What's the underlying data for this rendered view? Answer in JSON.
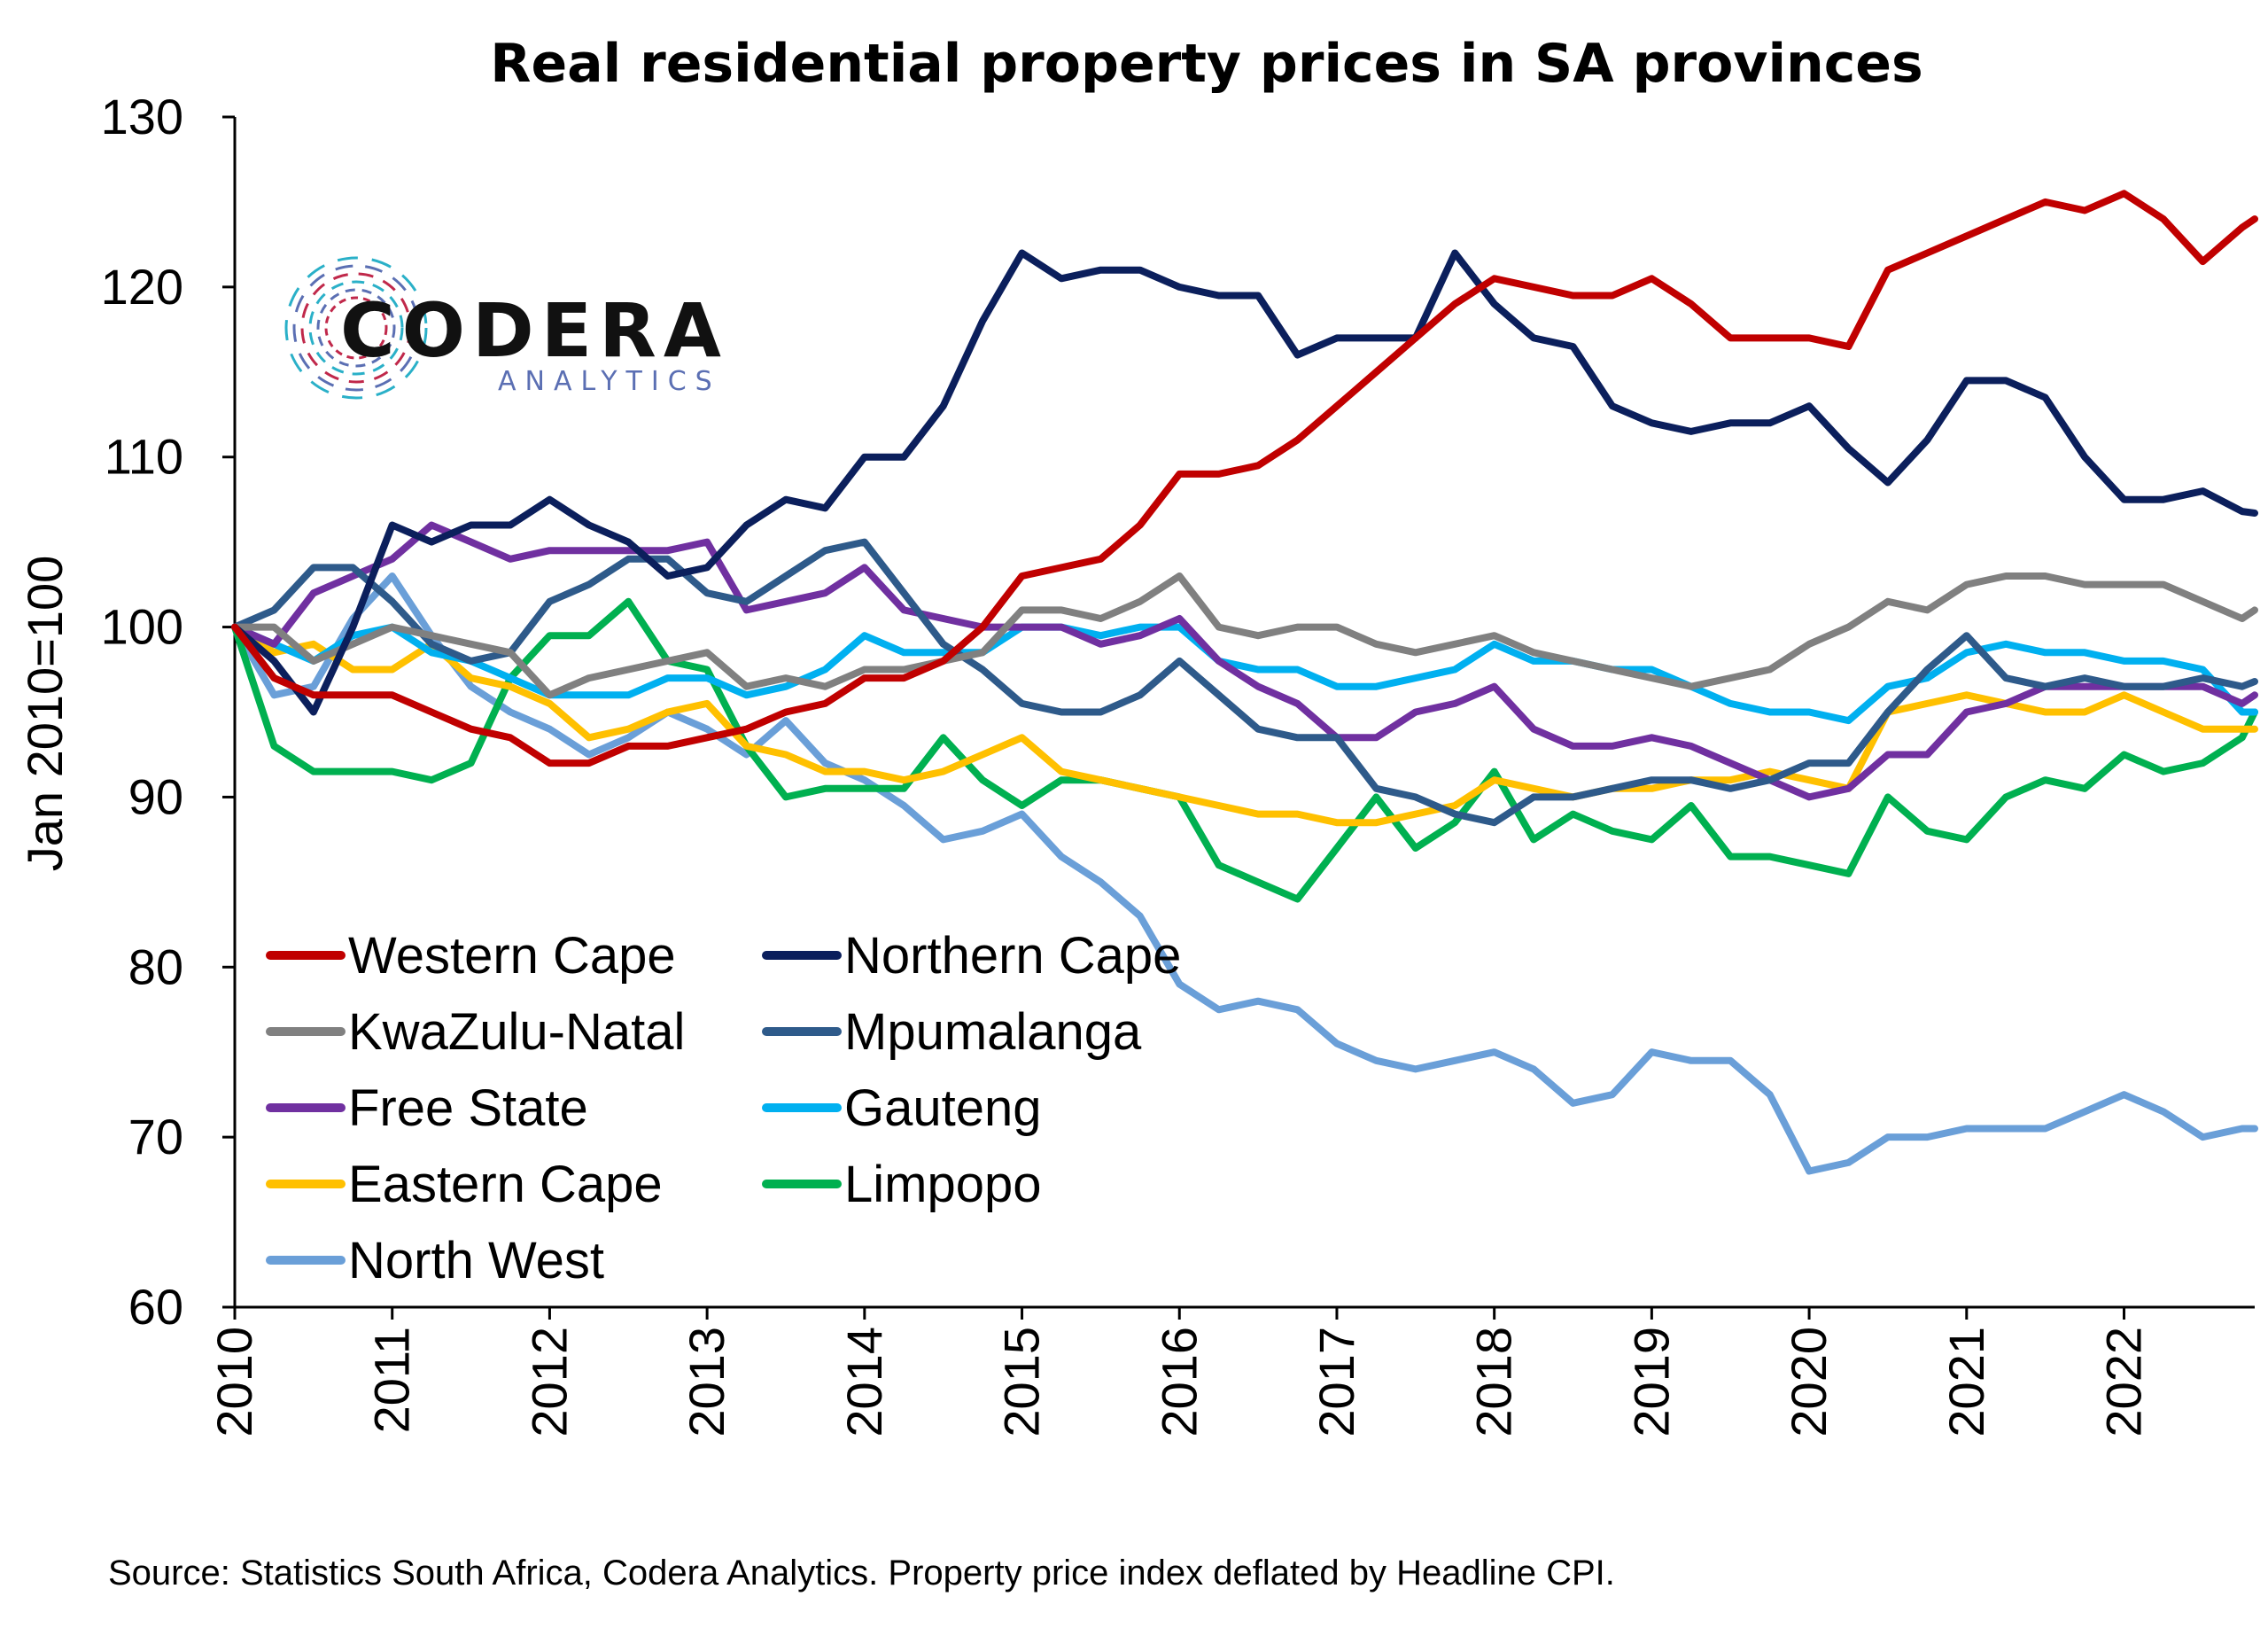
{
  "chart_data": {
    "type": "line",
    "title": "Real residential property prices in SA provinces",
    "ylabel": "Jan 2010=100",
    "xlabel": "",
    "ylim": [
      60,
      130
    ],
    "xlim": [
      2010,
      2022.83
    ],
    "yticks": [
      60,
      70,
      80,
      90,
      100,
      110,
      120,
      130
    ],
    "xticks": [
      "2010",
      "2011",
      "2012",
      "2013",
      "2014",
      "2015",
      "2016",
      "2017",
      "2018",
      "2019",
      "2020",
      "2021",
      "2022"
    ],
    "grid": false,
    "legend_position": "bottom-left",
    "source": "Source: Statistics South Africa, Codera Analytics. Property price index deflated by Headline CPI.",
    "series": [
      {
        "name": "Western Cape",
        "color": "#c00000",
        "x": [
          2010,
          2010.25,
          2010.5,
          2010.75,
          2011,
          2011.25,
          2011.5,
          2011.75,
          2012,
          2012.25,
          2012.5,
          2012.75,
          2013,
          2013.25,
          2013.5,
          2013.75,
          2014,
          2014.25,
          2014.5,
          2014.75,
          2015,
          2015.25,
          2015.5,
          2015.75,
          2016,
          2016.25,
          2016.5,
          2016.75,
          2017,
          2017.25,
          2017.5,
          2017.75,
          2018,
          2018.25,
          2018.5,
          2018.75,
          2019,
          2019.25,
          2019.5,
          2019.75,
          2020,
          2020.25,
          2020.5,
          2020.75,
          2021,
          2021.25,
          2021.5,
          2021.75,
          2022,
          2022.25,
          2022.5,
          2022.75,
          2022.83
        ],
        "y": [
          100,
          97,
          96,
          96,
          96,
          95,
          94,
          93.5,
          92,
          92,
          93,
          93,
          93.5,
          94,
          95,
          95.5,
          97,
          97,
          98,
          100,
          103,
          103.5,
          104,
          106,
          109,
          109,
          109.5,
          111,
          113,
          115,
          117,
          119,
          120.5,
          120,
          119.5,
          119.5,
          120.5,
          119,
          117,
          117,
          117,
          116.5,
          121,
          122,
          123,
          124,
          125,
          124.5,
          125.5,
          124,
          121.5,
          123.5,
          124
        ]
      },
      {
        "name": "Northern Cape",
        "color": "#0b1f5c",
        "x": [
          2010,
          2010.25,
          2010.5,
          2010.75,
          2011,
          2011.25,
          2011.5,
          2011.75,
          2012,
          2012.25,
          2012.5,
          2012.75,
          2013,
          2013.25,
          2013.5,
          2013.75,
          2014,
          2014.25,
          2014.5,
          2014.75,
          2015,
          2015.25,
          2015.5,
          2015.75,
          2016,
          2016.25,
          2016.5,
          2016.75,
          2017,
          2017.25,
          2017.5,
          2017.75,
          2018,
          2018.25,
          2018.5,
          2018.75,
          2019,
          2019.25,
          2019.5,
          2019.75,
          2020,
          2020.25,
          2020.5,
          2020.75,
          2021,
          2021.25,
          2021.5,
          2021.75,
          2022,
          2022.25,
          2022.5,
          2022.75,
          2022.83
        ],
        "y": [
          100,
          98,
          95,
          100,
          106,
          105,
          106,
          106,
          107.5,
          106,
          105,
          103,
          103.5,
          106,
          107.5,
          107,
          110,
          110,
          113,
          118,
          122,
          120.5,
          121,
          121,
          120,
          119.5,
          119.5,
          116,
          117,
          117,
          117,
          122,
          119,
          117,
          116.5,
          113,
          112,
          111.5,
          112,
          112,
          113,
          110.5,
          108.5,
          111,
          114.5,
          114.5,
          113.5,
          110,
          107.5,
          107.5,
          108,
          106.8,
          106.7
        ]
      },
      {
        "name": "KwaZulu-Natal",
        "color": "#808080",
        "x": [
          2010,
          2010.25,
          2010.5,
          2010.75,
          2011,
          2011.25,
          2011.5,
          2011.75,
          2012,
          2012.25,
          2012.5,
          2012.75,
          2013,
          2013.25,
          2013.5,
          2013.75,
          2014,
          2014.25,
          2014.5,
          2014.75,
          2015,
          2015.25,
          2015.5,
          2015.75,
          2016,
          2016.25,
          2016.5,
          2016.75,
          2017,
          2017.25,
          2017.5,
          2017.75,
          2018,
          2018.25,
          2018.5,
          2018.75,
          2019,
          2019.25,
          2019.5,
          2019.75,
          2020,
          2020.25,
          2020.5,
          2020.75,
          2021,
          2021.25,
          2021.5,
          2021.75,
          2022,
          2022.25,
          2022.5,
          2022.75,
          2022.83
        ],
        "y": [
          100,
          100,
          98,
          99,
          100,
          99.5,
          99,
          98.5,
          96,
          97,
          97.5,
          98,
          98.5,
          96.5,
          97,
          96.5,
          97.5,
          97.5,
          98,
          98.5,
          101,
          101,
          100.5,
          101.5,
          103,
          100,
          99.5,
          100,
          100,
          99,
          98.5,
          99,
          99.5,
          98.5,
          98,
          97.5,
          97,
          96.5,
          97,
          97.5,
          99,
          100,
          101.5,
          101,
          102.5,
          103,
          103,
          102.5,
          102.5,
          102.5,
          101.5,
          100.5,
          101
        ]
      },
      {
        "name": "Mpumalanga",
        "color": "#2e5a8a",
        "x": [
          2010,
          2010.25,
          2010.5,
          2010.75,
          2011,
          2011.25,
          2011.5,
          2011.75,
          2012,
          2012.25,
          2012.5,
          2012.75,
          2013,
          2013.25,
          2013.5,
          2013.75,
          2014,
          2014.25,
          2014.5,
          2014.75,
          2015,
          2015.25,
          2015.5,
          2015.75,
          2016,
          2016.25,
          2016.5,
          2016.75,
          2017,
          2017.25,
          2017.5,
          2017.75,
          2018,
          2018.25,
          2018.5,
          2018.75,
          2019,
          2019.25,
          2019.5,
          2019.75,
          2020,
          2020.25,
          2020.5,
          2020.75,
          2021,
          2021.25,
          2021.5,
          2021.75,
          2022,
          2022.25,
          2022.5,
          2022.75,
          2022.83
        ],
        "y": [
          100,
          101,
          103.5,
          103.5,
          101.5,
          99,
          98,
          98.5,
          101.5,
          102.5,
          104,
          104,
          102,
          101.5,
          103,
          104.5,
          105,
          102,
          99,
          97.5,
          95.5,
          95,
          95,
          96,
          98,
          96,
          94,
          93.5,
          93.5,
          90.5,
          90,
          89,
          88.5,
          90,
          90,
          90.5,
          91,
          91,
          90.5,
          91,
          92,
          92,
          95,
          97.5,
          99.5,
          97,
          96.5,
          97,
          96.5,
          96.5,
          97,
          96.5,
          96.8
        ]
      },
      {
        "name": "Free State",
        "color": "#7030a0",
        "x": [
          2010,
          2010.25,
          2010.5,
          2010.75,
          2011,
          2011.25,
          2011.5,
          2011.75,
          2012,
          2012.25,
          2012.5,
          2012.75,
          2013,
          2013.25,
          2013.5,
          2013.75,
          2014,
          2014.25,
          2014.5,
          2014.75,
          2015,
          2015.25,
          2015.5,
          2015.75,
          2016,
          2016.25,
          2016.5,
          2016.75,
          2017,
          2017.25,
          2017.5,
          2017.75,
          2018,
          2018.25,
          2018.5,
          2018.75,
          2019,
          2019.25,
          2019.5,
          2019.75,
          2020,
          2020.25,
          2020.5,
          2020.75,
          2021,
          2021.25,
          2021.5,
          2021.75,
          2022,
          2022.25,
          2022.5,
          2022.75,
          2022.83
        ],
        "y": [
          100,
          99,
          102,
          103,
          104,
          106,
          105,
          104,
          104.5,
          104.5,
          104.5,
          104.5,
          105,
          101,
          101.5,
          102,
          103.5,
          101,
          100.5,
          100,
          100,
          100,
          99,
          99.5,
          100.5,
          98,
          96.5,
          95.5,
          93.5,
          93.5,
          95,
          95.5,
          96.5,
          94,
          93,
          93,
          93.5,
          93,
          92,
          91,
          90,
          90.5,
          92.5,
          92.5,
          95,
          95.5,
          96.5,
          96.5,
          96.5,
          96.5,
          96.5,
          95.5,
          96
        ]
      },
      {
        "name": "Gauteng",
        "color": "#00b0f0",
        "x": [
          2010,
          2010.25,
          2010.5,
          2010.75,
          2011,
          2011.25,
          2011.5,
          2011.75,
          2012,
          2012.25,
          2012.5,
          2012.75,
          2013,
          2013.25,
          2013.5,
          2013.75,
          2014,
          2014.25,
          2014.5,
          2014.75,
          2015,
          2015.25,
          2015.5,
          2015.75,
          2016,
          2016.25,
          2016.5,
          2016.75,
          2017,
          2017.25,
          2017.5,
          2017.75,
          2018,
          2018.25,
          2018.5,
          2018.75,
          2019,
          2019.25,
          2019.5,
          2019.75,
          2020,
          2020.25,
          2020.5,
          2020.75,
          2021,
          2021.25,
          2021.5,
          2021.75,
          2022,
          2022.25,
          2022.5,
          2022.75,
          2022.83
        ],
        "y": [
          100,
          99,
          98,
          99.5,
          100,
          98.5,
          98,
          97,
          96,
          96,
          96,
          97,
          97,
          96,
          96.5,
          97.5,
          99.5,
          98.5,
          98.5,
          98.5,
          100,
          100,
          99.5,
          100,
          100,
          98,
          97.5,
          97.5,
          96.5,
          96.5,
          97,
          97.5,
          99,
          98,
          98,
          97.5,
          97.5,
          96.5,
          95.5,
          95,
          95,
          94.5,
          96.5,
          97,
          98.5,
          99,
          98.5,
          98.5,
          98,
          98,
          97.5,
          95,
          95
        ]
      },
      {
        "name": "Eastern Cape",
        "color": "#ffc000",
        "x": [
          2010,
          2010.25,
          2010.5,
          2010.75,
          2011,
          2011.25,
          2011.5,
          2011.75,
          2012,
          2012.25,
          2012.5,
          2012.75,
          2013,
          2013.25,
          2013.5,
          2013.75,
          2014,
          2014.25,
          2014.5,
          2014.75,
          2015,
          2015.25,
          2015.5,
          2015.75,
          2016,
          2016.25,
          2016.5,
          2016.75,
          2017,
          2017.25,
          2017.5,
          2017.75,
          2018,
          2018.25,
          2018.5,
          2018.75,
          2019,
          2019.25,
          2019.5,
          2019.75,
          2020,
          2020.25,
          2020.5,
          2020.75,
          2021,
          2021.25,
          2021.5,
          2021.75,
          2022,
          2022.25,
          2022.5,
          2022.75,
          2022.83
        ],
        "y": [
          100,
          98.5,
          99,
          97.5,
          97.5,
          99,
          97,
          96.5,
          95.5,
          93.5,
          94,
          95,
          95.5,
          93,
          92.5,
          91.5,
          91.5,
          91,
          91.5,
          92.5,
          93.5,
          91.5,
          91,
          90.5,
          90,
          89.5,
          89,
          89,
          88.5,
          88.5,
          89,
          89.5,
          91,
          90.5,
          90,
          90.5,
          90.5,
          91,
          91,
          91.5,
          91,
          90.5,
          95,
          95.5,
          96,
          95.5,
          95,
          95,
          96,
          95,
          94,
          94,
          94
        ]
      },
      {
        "name": "Limpopo",
        "color": "#00b050",
        "x": [
          2010,
          2010.25,
          2010.5,
          2010.75,
          2011,
          2011.25,
          2011.5,
          2011.75,
          2012,
          2012.25,
          2012.5,
          2012.75,
          2013,
          2013.25,
          2013.5,
          2013.75,
          2014,
          2014.25,
          2014.5,
          2014.75,
          2015,
          2015.25,
          2015.5,
          2015.75,
          2016,
          2016.25,
          2016.5,
          2016.75,
          2017,
          2017.25,
          2017.5,
          2017.75,
          2018,
          2018.25,
          2018.5,
          2018.75,
          2019,
          2019.25,
          2019.5,
          2019.75,
          2020,
          2020.25,
          2020.5,
          2020.75,
          2021,
          2021.25,
          2021.5,
          2021.75,
          2022,
          2022.25,
          2022.5,
          2022.75,
          2022.83
        ],
        "y": [
          100,
          93,
          91.5,
          91.5,
          91.5,
          91,
          92,
          97,
          99.5,
          99.5,
          101.5,
          98,
          97.5,
          93,
          90,
          90.5,
          90.5,
          90.5,
          93.5,
          91,
          89.5,
          91,
          91,
          90.5,
          90,
          86,
          85,
          84,
          87,
          90,
          87,
          88.5,
          91.5,
          87.5,
          89,
          88,
          87.5,
          89.5,
          86.5,
          86.5,
          86,
          85.5,
          90,
          88,
          87.5,
          90,
          91,
          90.5,
          92.5,
          91.5,
          92,
          93.5,
          95
        ]
      },
      {
        "name": "North West",
        "color": "#6a9fd8",
        "x": [
          2010,
          2010.25,
          2010.5,
          2010.75,
          2011,
          2011.25,
          2011.5,
          2011.75,
          2012,
          2012.25,
          2012.5,
          2012.75,
          2013,
          2013.25,
          2013.5,
          2013.75,
          2014,
          2014.25,
          2014.5,
          2014.75,
          2015,
          2015.25,
          2015.5,
          2015.75,
          2016,
          2016.25,
          2016.5,
          2016.75,
          2017,
          2017.25,
          2017.5,
          2017.75,
          2018,
          2018.25,
          2018.5,
          2018.75,
          2019,
          2019.25,
          2019.5,
          2019.75,
          2020,
          2020.25,
          2020.5,
          2020.75,
          2021,
          2021.25,
          2021.5,
          2021.75,
          2022,
          2022.25,
          2022.5,
          2022.75,
          2022.83
        ],
        "y": [
          100,
          96,
          96.5,
          100.5,
          103,
          99.5,
          96.5,
          95,
          94,
          92.5,
          93.5,
          95,
          94,
          92.5,
          94.5,
          92,
          91,
          89.5,
          87.5,
          88,
          89,
          86.5,
          85,
          83,
          79,
          77.5,
          78,
          77.5,
          75.5,
          74.5,
          74,
          74.5,
          75,
          74,
          72,
          72.5,
          75,
          74.5,
          74.5,
          72.5,
          68,
          68.5,
          70,
          70,
          70.5,
          70.5,
          70.5,
          71.5,
          72.5,
          71.5,
          70,
          70.5,
          70.5
        ]
      }
    ]
  },
  "logo": {
    "name": "CODERA",
    "sub": "ANALYTICS",
    "colors": [
      "#c0284a",
      "#5b6fb3",
      "#2ab0c8"
    ]
  }
}
